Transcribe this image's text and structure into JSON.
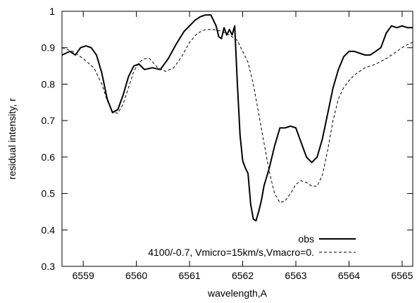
{
  "chart_data": {
    "type": "line",
    "xlabel": "wavelength,A",
    "ylabel": "residual intensity, r",
    "xlim": [
      6558.6,
      6565.2
    ],
    "ylim": [
      0.3,
      1.0
    ],
    "xticks": [
      6559,
      6560,
      6561,
      6562,
      6563,
      6564,
      6565
    ],
    "yticks": [
      0.3,
      0.4,
      0.5,
      0.6,
      0.7,
      0.8,
      0.9,
      1.0
    ],
    "xtick_labels": [
      "6559",
      "6560",
      "6561",
      "6562",
      "6563",
      "6564",
      "6565"
    ],
    "ytick_labels": [
      "0.3",
      "0.4",
      "0.5",
      "0.6",
      "0.7",
      "0.8",
      "0.9",
      "1"
    ],
    "grid": false,
    "legend_position": "bottom-right",
    "series": [
      {
        "name": "obs",
        "style": "solid",
        "color": "#000000",
        "x": [
          6558.6,
          6558.75,
          6558.85,
          6558.95,
          6559.05,
          6559.15,
          6559.25,
          6559.35,
          6559.45,
          6559.55,
          6559.65,
          6559.75,
          6559.85,
          6559.95,
          6560.05,
          6560.15,
          6560.3,
          6560.45,
          6560.6,
          6560.75,
          6560.9,
          6561.0,
          6561.1,
          6561.2,
          6561.3,
          6561.4,
          6561.5,
          6561.55,
          6561.6,
          6561.65,
          6561.7,
          6561.75,
          6561.8,
          6561.85,
          6561.9,
          6561.95,
          6562.0,
          6562.05,
          6562.1,
          6562.15,
          6562.2,
          6562.25,
          6562.3,
          6562.35,
          6562.4,
          6562.5,
          6562.6,
          6562.7,
          6562.8,
          6562.9,
          6563.0,
          6563.1,
          6563.2,
          6563.3,
          6563.4,
          6563.5,
          6563.6,
          6563.7,
          6563.8,
          6563.9,
          6564.0,
          6564.1,
          6564.2,
          6564.3,
          6564.4,
          6564.5,
          6564.6,
          6564.7,
          6564.8,
          6564.9,
          6565.0,
          6565.1,
          6565.2
        ],
        "y": [
          0.88,
          0.89,
          0.88,
          0.9,
          0.905,
          0.9,
          0.88,
          0.83,
          0.76,
          0.722,
          0.73,
          0.77,
          0.82,
          0.85,
          0.855,
          0.84,
          0.845,
          0.84,
          0.87,
          0.91,
          0.945,
          0.96,
          0.975,
          0.985,
          0.99,
          0.99,
          0.96,
          0.93,
          0.925,
          0.955,
          0.935,
          0.95,
          0.935,
          0.96,
          0.8,
          0.66,
          0.59,
          0.57,
          0.555,
          0.47,
          0.43,
          0.425,
          0.45,
          0.48,
          0.52,
          0.57,
          0.63,
          0.68,
          0.68,
          0.685,
          0.68,
          0.64,
          0.6,
          0.585,
          0.6,
          0.65,
          0.72,
          0.79,
          0.84,
          0.875,
          0.89,
          0.89,
          0.885,
          0.88,
          0.88,
          0.89,
          0.9,
          0.94,
          0.96,
          0.955,
          0.96,
          0.955,
          0.955
        ]
      },
      {
        "name": "4100/-0.7, Vmicro=15km/s,Vmacro=0.",
        "style": "dashed",
        "color": "#000000",
        "x": [
          6558.6,
          6558.8,
          6559.0,
          6559.2,
          6559.35,
          6559.45,
          6559.55,
          6559.65,
          6559.75,
          6559.85,
          6559.95,
          6560.05,
          6560.15,
          6560.25,
          6560.4,
          6560.55,
          6560.7,
          6560.85,
          6561.0,
          6561.15,
          6561.3,
          6561.45,
          6561.6,
          6561.75,
          6561.9,
          6562.0,
          6562.1,
          6562.2,
          6562.3,
          6562.4,
          6562.5,
          6562.6,
          6562.7,
          6562.8,
          6562.9,
          6563.0,
          6563.1,
          6563.2,
          6563.3,
          6563.4,
          6563.5,
          6563.6,
          6563.7,
          6563.8,
          6563.9,
          6564.0,
          6564.1,
          6564.2,
          6564.3,
          6564.5,
          6564.7,
          6564.9,
          6565.05,
          6565.2
        ],
        "y": [
          0.9,
          0.89,
          0.87,
          0.845,
          0.8,
          0.755,
          0.725,
          0.72,
          0.745,
          0.79,
          0.835,
          0.86,
          0.87,
          0.87,
          0.845,
          0.835,
          0.845,
          0.875,
          0.915,
          0.94,
          0.95,
          0.95,
          0.945,
          0.935,
          0.92,
          0.89,
          0.86,
          0.8,
          0.72,
          0.64,
          0.56,
          0.5,
          0.475,
          0.48,
          0.5,
          0.525,
          0.535,
          0.53,
          0.52,
          0.52,
          0.55,
          0.62,
          0.7,
          0.76,
          0.79,
          0.81,
          0.825,
          0.835,
          0.845,
          0.855,
          0.87,
          0.89,
          0.905,
          0.915
        ]
      }
    ]
  }
}
